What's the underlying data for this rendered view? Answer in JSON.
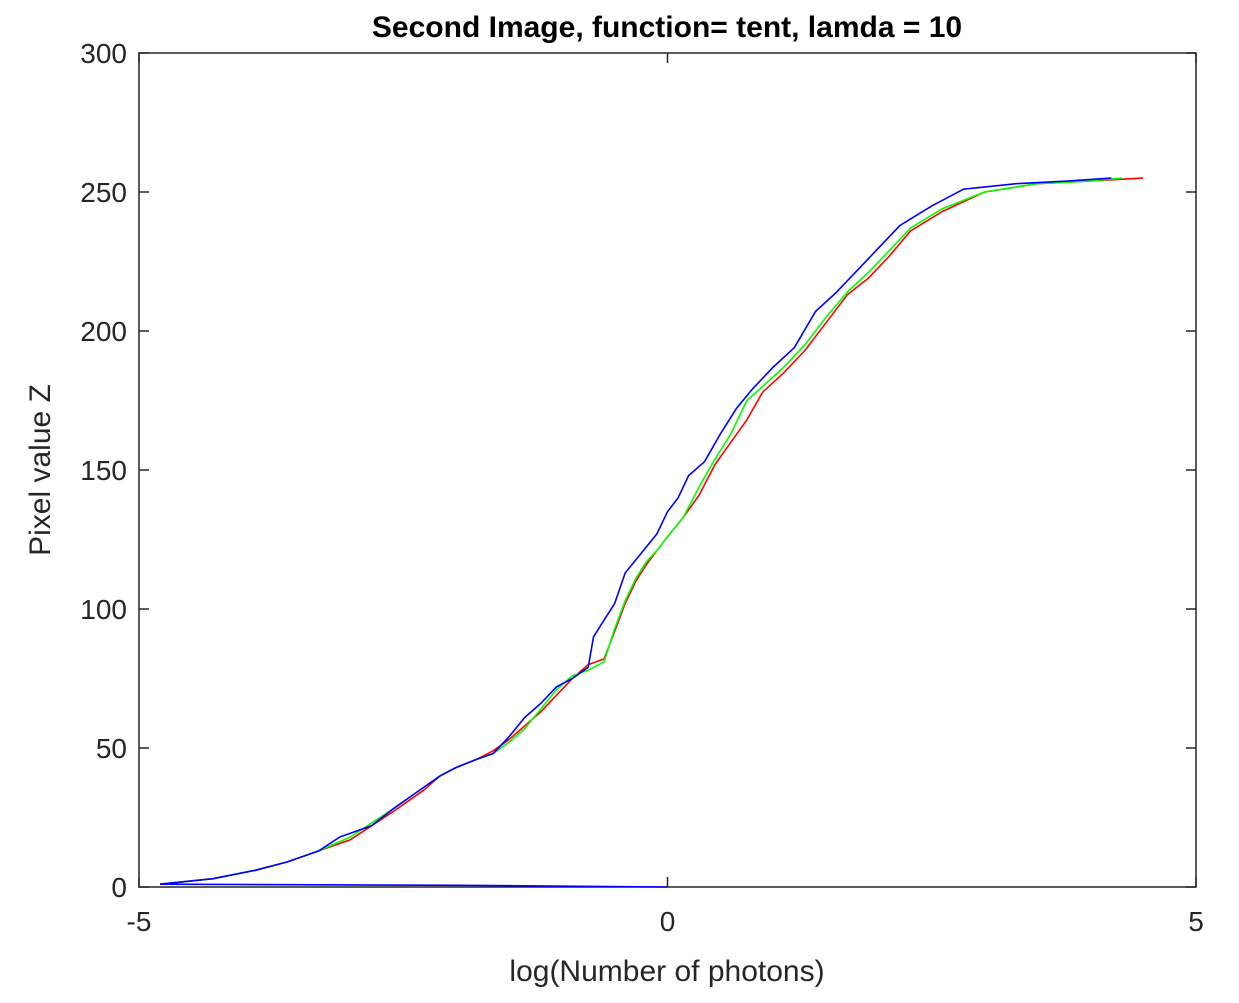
{
  "chart_data": {
    "type": "line",
    "title": "Second Image, function= tent, lamda = 10",
    "xlabel": "log(Number of photons)",
    "ylabel": "Pixel value Z",
    "xlim": [
      -5,
      5
    ],
    "ylim": [
      0,
      300
    ],
    "xticks": [
      "-5",
      "0",
      "5"
    ],
    "yticks": [
      "0",
      "50",
      "100",
      "150",
      "200",
      "250",
      "300"
    ],
    "grid": false,
    "legend": "none",
    "series": [
      {
        "color": "#ff0000",
        "points": [
          [
            -4.8,
            1
          ],
          [
            -4.3,
            3
          ],
          [
            -3.9,
            6
          ],
          [
            -3.6,
            9
          ],
          [
            -3.3,
            13
          ],
          [
            -3.0,
            17
          ],
          [
            -2.8,
            22
          ],
          [
            -2.6,
            27
          ],
          [
            -2.45,
            31
          ],
          [
            -2.3,
            35
          ],
          [
            -2.15,
            40
          ],
          [
            -2.0,
            43
          ],
          [
            -1.8,
            46
          ],
          [
            -1.65,
            49
          ],
          [
            -1.5,
            53
          ],
          [
            -1.35,
            58
          ],
          [
            -1.2,
            63
          ],
          [
            -1.05,
            69
          ],
          [
            -0.9,
            75
          ],
          [
            -0.75,
            80
          ],
          [
            -0.6,
            82
          ],
          [
            -0.5,
            92
          ],
          [
            -0.4,
            102
          ],
          [
            -0.3,
            110
          ],
          [
            -0.2,
            116
          ],
          [
            -0.1,
            121
          ],
          [
            0.0,
            126
          ],
          [
            0.15,
            133
          ],
          [
            0.3,
            141
          ],
          [
            0.45,
            152
          ],
          [
            0.6,
            160
          ],
          [
            0.75,
            168
          ],
          [
            0.9,
            178
          ],
          [
            1.1,
            185
          ],
          [
            1.3,
            193
          ],
          [
            1.5,
            203
          ],
          [
            1.7,
            213
          ],
          [
            1.9,
            219
          ],
          [
            2.1,
            227
          ],
          [
            2.3,
            236
          ],
          [
            2.6,
            243
          ],
          [
            3.0,
            250
          ],
          [
            3.5,
            253
          ],
          [
            4.0,
            254
          ],
          [
            4.5,
            255
          ]
        ]
      },
      {
        "color": "#00ff00",
        "points": [
          [
            -4.8,
            1
          ],
          [
            -4.3,
            3
          ],
          [
            -3.9,
            6
          ],
          [
            -3.6,
            9
          ],
          [
            -3.3,
            13
          ],
          [
            -3.0,
            18
          ],
          [
            -2.8,
            23
          ],
          [
            -2.6,
            28
          ],
          [
            -2.45,
            32
          ],
          [
            -2.3,
            36
          ],
          [
            -2.15,
            40
          ],
          [
            -2.0,
            43
          ],
          [
            -1.8,
            46
          ],
          [
            -1.65,
            48
          ],
          [
            -1.5,
            52
          ],
          [
            -1.35,
            57
          ],
          [
            -1.2,
            64
          ],
          [
            -1.05,
            71
          ],
          [
            -0.9,
            76
          ],
          [
            -0.75,
            78
          ],
          [
            -0.6,
            81
          ],
          [
            -0.5,
            93
          ],
          [
            -0.4,
            103
          ],
          [
            -0.3,
            111
          ],
          [
            -0.2,
            117
          ],
          [
            -0.1,
            121
          ],
          [
            0.0,
            126
          ],
          [
            0.15,
            133
          ],
          [
            0.3,
            144
          ],
          [
            0.45,
            154
          ],
          [
            0.6,
            163
          ],
          [
            0.75,
            175
          ],
          [
            0.9,
            180
          ],
          [
            1.1,
            187
          ],
          [
            1.3,
            195
          ],
          [
            1.5,
            205
          ],
          [
            1.7,
            214
          ],
          [
            1.9,
            221
          ],
          [
            2.1,
            229
          ],
          [
            2.3,
            237
          ],
          [
            2.6,
            244
          ],
          [
            3.0,
            250
          ],
          [
            3.5,
            253
          ],
          [
            4.0,
            254
          ],
          [
            4.3,
            255
          ]
        ]
      },
      {
        "color": "#0000ff",
        "points": [
          [
            -4.8,
            1
          ],
          [
            -4.3,
            3
          ],
          [
            -3.9,
            6
          ],
          [
            -3.6,
            9
          ],
          [
            -3.3,
            13
          ],
          [
            -3.1,
            18
          ],
          [
            -2.8,
            22
          ],
          [
            -2.6,
            28
          ],
          [
            -2.45,
            32
          ],
          [
            -2.3,
            36
          ],
          [
            -2.15,
            40
          ],
          [
            -2.0,
            43
          ],
          [
            -1.8,
            46
          ],
          [
            -1.65,
            48
          ],
          [
            -1.5,
            54
          ],
          [
            -1.35,
            61
          ],
          [
            -1.2,
            66
          ],
          [
            -1.05,
            72
          ],
          [
            -0.9,
            75
          ],
          [
            -0.75,
            79
          ],
          [
            -0.7,
            90
          ],
          [
            -0.6,
            96
          ],
          [
            -0.5,
            102
          ],
          [
            -0.4,
            113
          ],
          [
            -0.25,
            120
          ],
          [
            -0.1,
            127
          ],
          [
            0.0,
            135
          ],
          [
            0.1,
            140
          ],
          [
            0.2,
            148
          ],
          [
            0.35,
            153
          ],
          [
            0.5,
            163
          ],
          [
            0.65,
            172
          ],
          [
            0.8,
            179
          ],
          [
            1.0,
            187
          ],
          [
            1.2,
            194
          ],
          [
            1.4,
            207
          ],
          [
            1.6,
            214
          ],
          [
            1.8,
            222
          ],
          [
            2.0,
            230
          ],
          [
            2.2,
            238
          ],
          [
            2.5,
            245
          ],
          [
            2.8,
            251
          ],
          [
            3.3,
            253
          ],
          [
            3.8,
            254
          ],
          [
            4.2,
            255
          ]
        ]
      },
      {
        "color": "#0000ff",
        "points": [
          [
            -4.8,
            1
          ],
          [
            -2.0,
            0.6
          ],
          [
            0.0,
            0
          ]
        ]
      }
    ]
  }
}
